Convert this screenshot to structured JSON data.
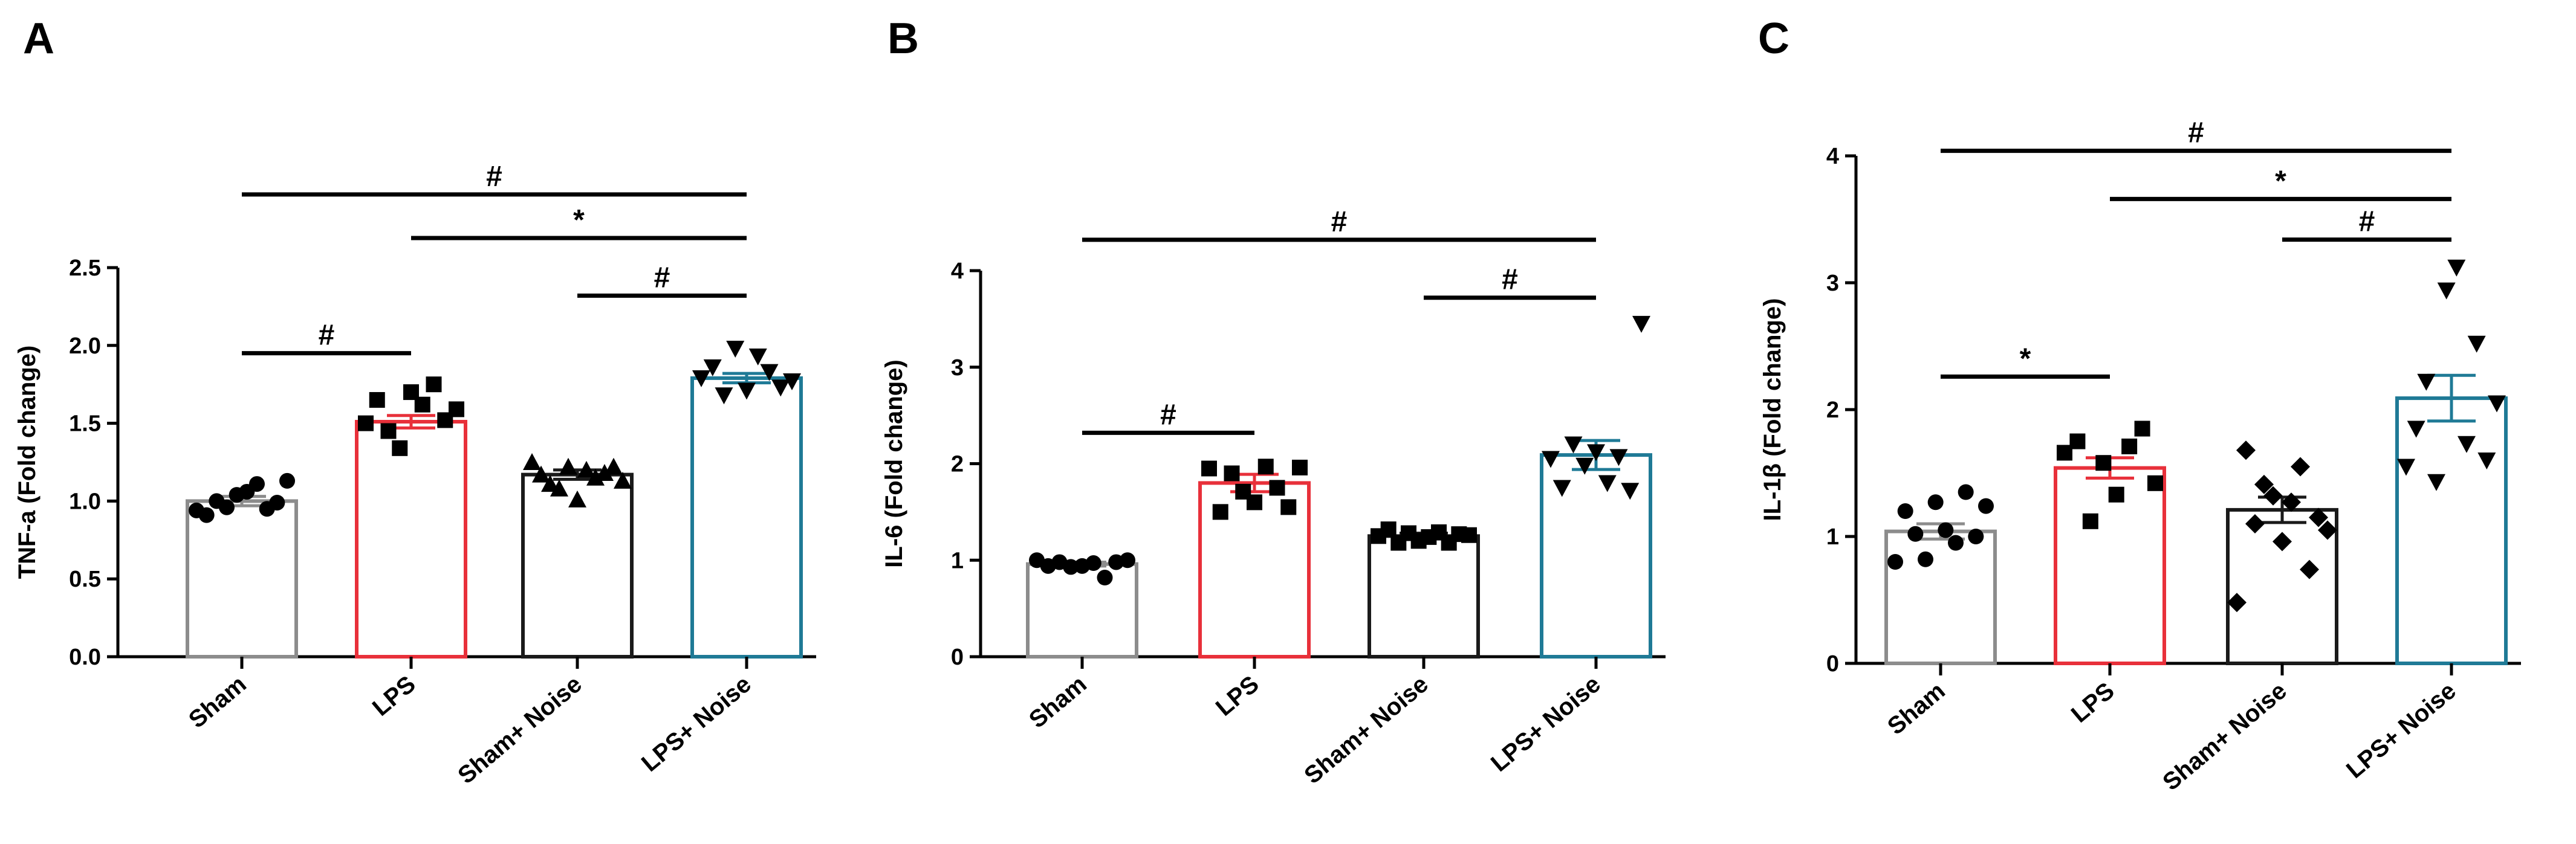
{
  "figure": {
    "panel_labels": [
      "A",
      "B",
      "C"
    ]
  },
  "chart_data": [
    {
      "panel": "A",
      "type": "bar",
      "ylabel": "TNF-a (Fold change)",
      "ylim": [
        0,
        2.5
      ],
      "yticks": [
        "0.0",
        "0.5",
        "1.0",
        "1.5",
        "2.0",
        "2.5"
      ],
      "ytick_values": [
        0,
        0.5,
        1.0,
        1.5,
        2.0,
        2.5
      ],
      "categories": [
        "Sham",
        "LPS",
        "Sham+ Noise",
        "LPS+ Noise"
      ],
      "means": [
        1.0,
        1.51,
        1.17,
        1.79
      ],
      "sem": [
        0.03,
        0.04,
        0.03,
        0.03
      ],
      "bar_colors": [
        "#8c8c8c",
        "#e8303a",
        "#1a1a1a",
        "#1f7a96"
      ],
      "markers": [
        "circle",
        "square",
        "triangle-up",
        "triangle-down"
      ],
      "points": [
        [
          0.94,
          0.91,
          1.0,
          0.96,
          1.04,
          1.06,
          1.11,
          0.95,
          0.99,
          1.13
        ],
        [
          1.5,
          1.65,
          1.45,
          1.34,
          1.7,
          1.62,
          1.75,
          1.52,
          1.59
        ],
        [
          1.25,
          1.17,
          1.11,
          1.08,
          1.22,
          1.01,
          1.2,
          1.15,
          1.18,
          1.22,
          1.13
        ],
        [
          1.79,
          1.86,
          1.68,
          1.98,
          1.71,
          1.93,
          1.83,
          1.73,
          1.77
        ]
      ],
      "significance": [
        {
          "from": 0,
          "to": 1,
          "y": 1.95,
          "label": "#"
        },
        {
          "from": 2,
          "to": 3,
          "y": 2.32,
          "label": "#"
        },
        {
          "from": 1,
          "to": 3,
          "y": 2.69,
          "label": "*"
        },
        {
          "from": 0,
          "to": 3,
          "y": 2.97,
          "label": "#"
        }
      ]
    },
    {
      "panel": "B",
      "type": "bar",
      "ylabel": "IL-6 (Fold change)",
      "ylim": [
        0,
        4
      ],
      "yticks": [
        "0",
        "1",
        "2",
        "3",
        "4"
      ],
      "ytick_values": [
        0,
        1,
        2,
        3,
        4
      ],
      "categories": [
        "Sham",
        "LPS",
        "Sham+ Noise",
        "LPS+ Noise"
      ],
      "means": [
        0.96,
        1.8,
        1.25,
        2.09
      ],
      "sem": [
        0.02,
        0.09,
        0.03,
        0.15
      ],
      "bar_colors": [
        "#8c8c8c",
        "#e8303a",
        "#1a1a1a",
        "#1f7a96"
      ],
      "markers": [
        "circle",
        "square",
        "square",
        "triangle-down"
      ],
      "points": [
        [
          1.0,
          0.94,
          0.98,
          0.93,
          0.94,
          0.97,
          0.82,
          0.98,
          1.0
        ],
        [
          1.95,
          1.5,
          1.9,
          1.71,
          1.6,
          1.97,
          1.75,
          1.55,
          1.96
        ],
        [
          1.25,
          1.32,
          1.18,
          1.28,
          1.2,
          1.24,
          1.29,
          1.18,
          1.27,
          1.26
        ],
        [
          2.05,
          1.75,
          2.2,
          1.98,
          2.12,
          1.8,
          2.07,
          1.72,
          3.45
        ]
      ],
      "significance": [
        {
          "from": 0,
          "to": 1,
          "y": 2.32,
          "label": "#"
        },
        {
          "from": 2,
          "to": 3,
          "y": 3.72,
          "label": "#"
        },
        {
          "from": 0,
          "to": 3,
          "y": 4.32,
          "label": "#"
        }
      ]
    },
    {
      "panel": "C",
      "type": "bar",
      "ylabel": "IL-1β (Fold change)",
      "ylim": [
        0,
        4
      ],
      "yticks": [
        "0",
        "1",
        "2",
        "3",
        "4"
      ],
      "ytick_values": [
        0,
        1,
        2,
        3,
        4
      ],
      "categories": [
        "Sham",
        "LPS",
        "Sham+ Noise",
        "LPS+ Noise"
      ],
      "means": [
        1.04,
        1.54,
        1.21,
        2.09
      ],
      "sem": [
        0.06,
        0.08,
        0.1,
        0.18
      ],
      "bar_colors": [
        "#8c8c8c",
        "#e8303a",
        "#1a1a1a",
        "#1f7a96"
      ],
      "markers": [
        "circle",
        "square",
        "diamond",
        "triangle-down"
      ],
      "points": [
        [
          0.8,
          1.2,
          1.02,
          0.82,
          1.27,
          1.05,
          0.95,
          1.35,
          1.0,
          1.24
        ],
        [
          1.66,
          1.75,
          1.12,
          1.58,
          1.33,
          1.71,
          1.85,
          1.42
        ],
        [
          0.48,
          1.68,
          1.1,
          1.41,
          1.32,
          0.96,
          1.27,
          1.55,
          0.74,
          1.15,
          1.05
        ],
        [
          1.55,
          1.85,
          2.22,
          1.43,
          2.94,
          3.12,
          1.73,
          2.52,
          1.6,
          2.05
        ]
      ],
      "significance": [
        {
          "from": 0,
          "to": 1,
          "y": 2.26,
          "label": "*"
        },
        {
          "from": 2,
          "to": 3,
          "y": 3.34,
          "label": "#"
        },
        {
          "from": 1,
          "to": 3,
          "y": 3.66,
          "label": "*"
        },
        {
          "from": 0,
          "to": 3,
          "y": 4.04,
          "label": "#"
        }
      ]
    }
  ]
}
